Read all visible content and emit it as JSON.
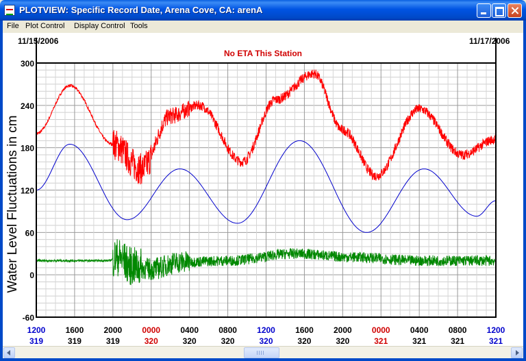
{
  "window": {
    "title": "PLOTVIEW: Specific Record Date, Arena Cove, CA: arenA"
  },
  "menu": {
    "items": [
      "File",
      "Plot Control",
      "Display Control",
      "Tools"
    ]
  },
  "plot": {
    "start_date": "11/15/2006",
    "end_date": "11/17/2006",
    "notice": "No ETA This Station",
    "colors": {
      "observed": "#FF0000",
      "predicted": "#0000CC",
      "residual": "#008800",
      "notice": "#D00000"
    }
  },
  "chart_data": {
    "type": "line",
    "ylabel": "Water Level Fluctuations in cm",
    "ylim": [
      -60,
      300
    ],
    "yticks": [
      "300",
      "240",
      "180",
      "120",
      "60",
      "0",
      "-60"
    ],
    "xlim_hours": [
      0,
      48
    ],
    "xticks": [
      {
        "time": "1200",
        "day": "319",
        "color": "#0000CC"
      },
      {
        "time": "1600",
        "day": "319",
        "color": "#000000"
      },
      {
        "time": "2000",
        "day": "319",
        "color": "#000000"
      },
      {
        "time": "0000",
        "day": "320",
        "color": "#D00000"
      },
      {
        "time": "0400",
        "day": "320",
        "color": "#000000"
      },
      {
        "time": "0800",
        "day": "320",
        "color": "#000000"
      },
      {
        "time": "1200",
        "day": "320",
        "color": "#0000CC"
      },
      {
        "time": "1600",
        "day": "320",
        "color": "#000000"
      },
      {
        "time": "2000",
        "day": "320",
        "color": "#000000"
      },
      {
        "time": "0000",
        "day": "321",
        "color": "#D00000"
      },
      {
        "time": "0400",
        "day": "321",
        "color": "#000000"
      },
      {
        "time": "0800",
        "day": "321",
        "color": "#000000"
      },
      {
        "time": "1200",
        "day": "321",
        "color": "#0000CC"
      }
    ],
    "grid": true,
    "series": [
      {
        "color": "#FF0000",
        "x": [
          0,
          3.5,
          8,
          11,
          14,
          17,
          21.5,
          25,
          29,
          32,
          35.5,
          40,
          44.5,
          48
        ],
        "y": [
          200,
          268,
          185,
          150,
          225,
          240,
          160,
          248,
          285,
          205,
          140,
          235,
          170,
          192
        ]
      },
      {
        "color": "#0000CC",
        "x": [
          0,
          3.5,
          9.5,
          15,
          21,
          27.5,
          34.5,
          40.5,
          46,
          48
        ],
        "y": [
          120,
          185,
          78,
          150,
          73,
          190,
          60,
          150,
          83,
          105
        ]
      },
      {
        "color": "#008800",
        "x": [
          0,
          7.5,
          8.5,
          10,
          12,
          15,
          20,
          27,
          33,
          40,
          48
        ],
        "y": [
          20,
          20,
          25,
          12,
          8,
          18,
          20,
          30,
          25,
          20,
          20
        ]
      }
    ]
  }
}
